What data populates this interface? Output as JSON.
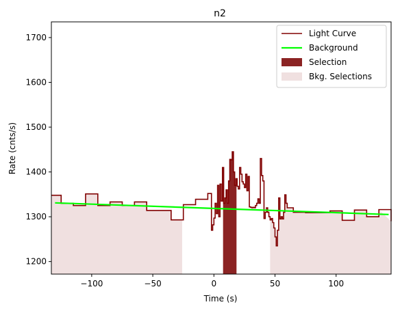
{
  "chart_data": {
    "type": "line",
    "title": "n2",
    "xlabel": "Time (s)",
    "ylabel": "Rate (cnts/s)",
    "xlim": [
      -133,
      145
    ],
    "ylim": [
      1172,
      1735
    ],
    "xticks": [
      -100,
      -50,
      0,
      50,
      100
    ],
    "yticks": [
      1200,
      1300,
      1400,
      1500,
      1600,
      1700
    ],
    "legend_position": "top-right",
    "legend": [
      {
        "label": "Light Curve",
        "kind": "line",
        "color": "#800000"
      },
      {
        "label": "Background",
        "kind": "line",
        "color": "#00ff00"
      },
      {
        "label": "Selection",
        "kind": "patch",
        "color": "#8b2323"
      },
      {
        "label": "Bkg. Selections",
        "kind": "patch",
        "color": "#f0e0e0"
      }
    ],
    "selection": {
      "range": [
        7.5,
        18.5
      ],
      "color": "#8b2323"
    },
    "bkg_selections": [
      {
        "range": [
          -133,
          -26
        ]
      },
      {
        "range": [
          46,
          145
        ]
      }
    ],
    "background": {
      "x": [
        -130,
        143
      ],
      "y": [
        1331,
        1305
      ],
      "color": "#00ff00"
    },
    "light_curve": {
      "color": "#800000",
      "x": [
        -133,
        -125,
        -115,
        -105,
        -95,
        -85,
        -75,
        -65,
        -55,
        -45,
        -35,
        -25,
        -15,
        -5,
        5,
        15,
        25,
        35,
        45,
        55,
        65,
        75,
        85,
        95,
        105,
        115,
        125,
        135,
        145
      ],
      "y": [
        1348,
        1330,
        1325,
        1351,
        1325,
        1333,
        1325,
        1333,
        1314,
        1314,
        1293,
        1327,
        1339,
        1352,
        1320,
        1345,
        1320,
        1320,
        1318,
        1320,
        1310,
        1309,
        1309,
        1313,
        1292,
        1315,
        1300,
        1316,
        1290
      ],
      "fine_x": [
        -2,
        -1,
        0,
        1,
        2,
        3,
        4,
        5,
        6,
        7,
        8,
        9,
        10,
        11,
        12,
        13,
        14,
        15,
        16,
        17,
        18,
        19,
        20,
        21,
        22,
        23,
        24,
        25,
        26,
        27,
        28,
        29,
        30,
        31,
        32,
        33,
        34,
        35,
        36,
        37,
        38,
        39,
        40,
        41,
        42,
        43,
        44,
        45,
        46,
        47,
        48,
        49,
        50,
        51,
        52,
        53,
        54,
        55,
        56,
        57,
        58,
        59,
        60
      ],
      "fine_y": [
        1270,
        1282,
        1297,
        1330,
        1307,
        1370,
        1300,
        1373,
        1335,
        1410,
        1330,
        1342,
        1360,
        1330,
        1380,
        1428,
        1427,
        1445,
        1400,
        1370,
        1385,
        1368,
        1362,
        1410,
        1395,
        1378,
        1373,
        1365,
        1395,
        1358,
        1390,
        1322,
        1321,
        1320,
        1321,
        1320,
        1325,
        1330,
        1340,
        1330,
        1430,
        1392,
        1380,
        1296,
        1310,
        1320,
        1310,
        1300,
        1293,
        1296,
        1287,
        1275,
        1255,
        1235,
        1270,
        1342,
        1295,
        1300,
        1295,
        1310,
        1349,
        1330,
        1320
      ]
    }
  }
}
